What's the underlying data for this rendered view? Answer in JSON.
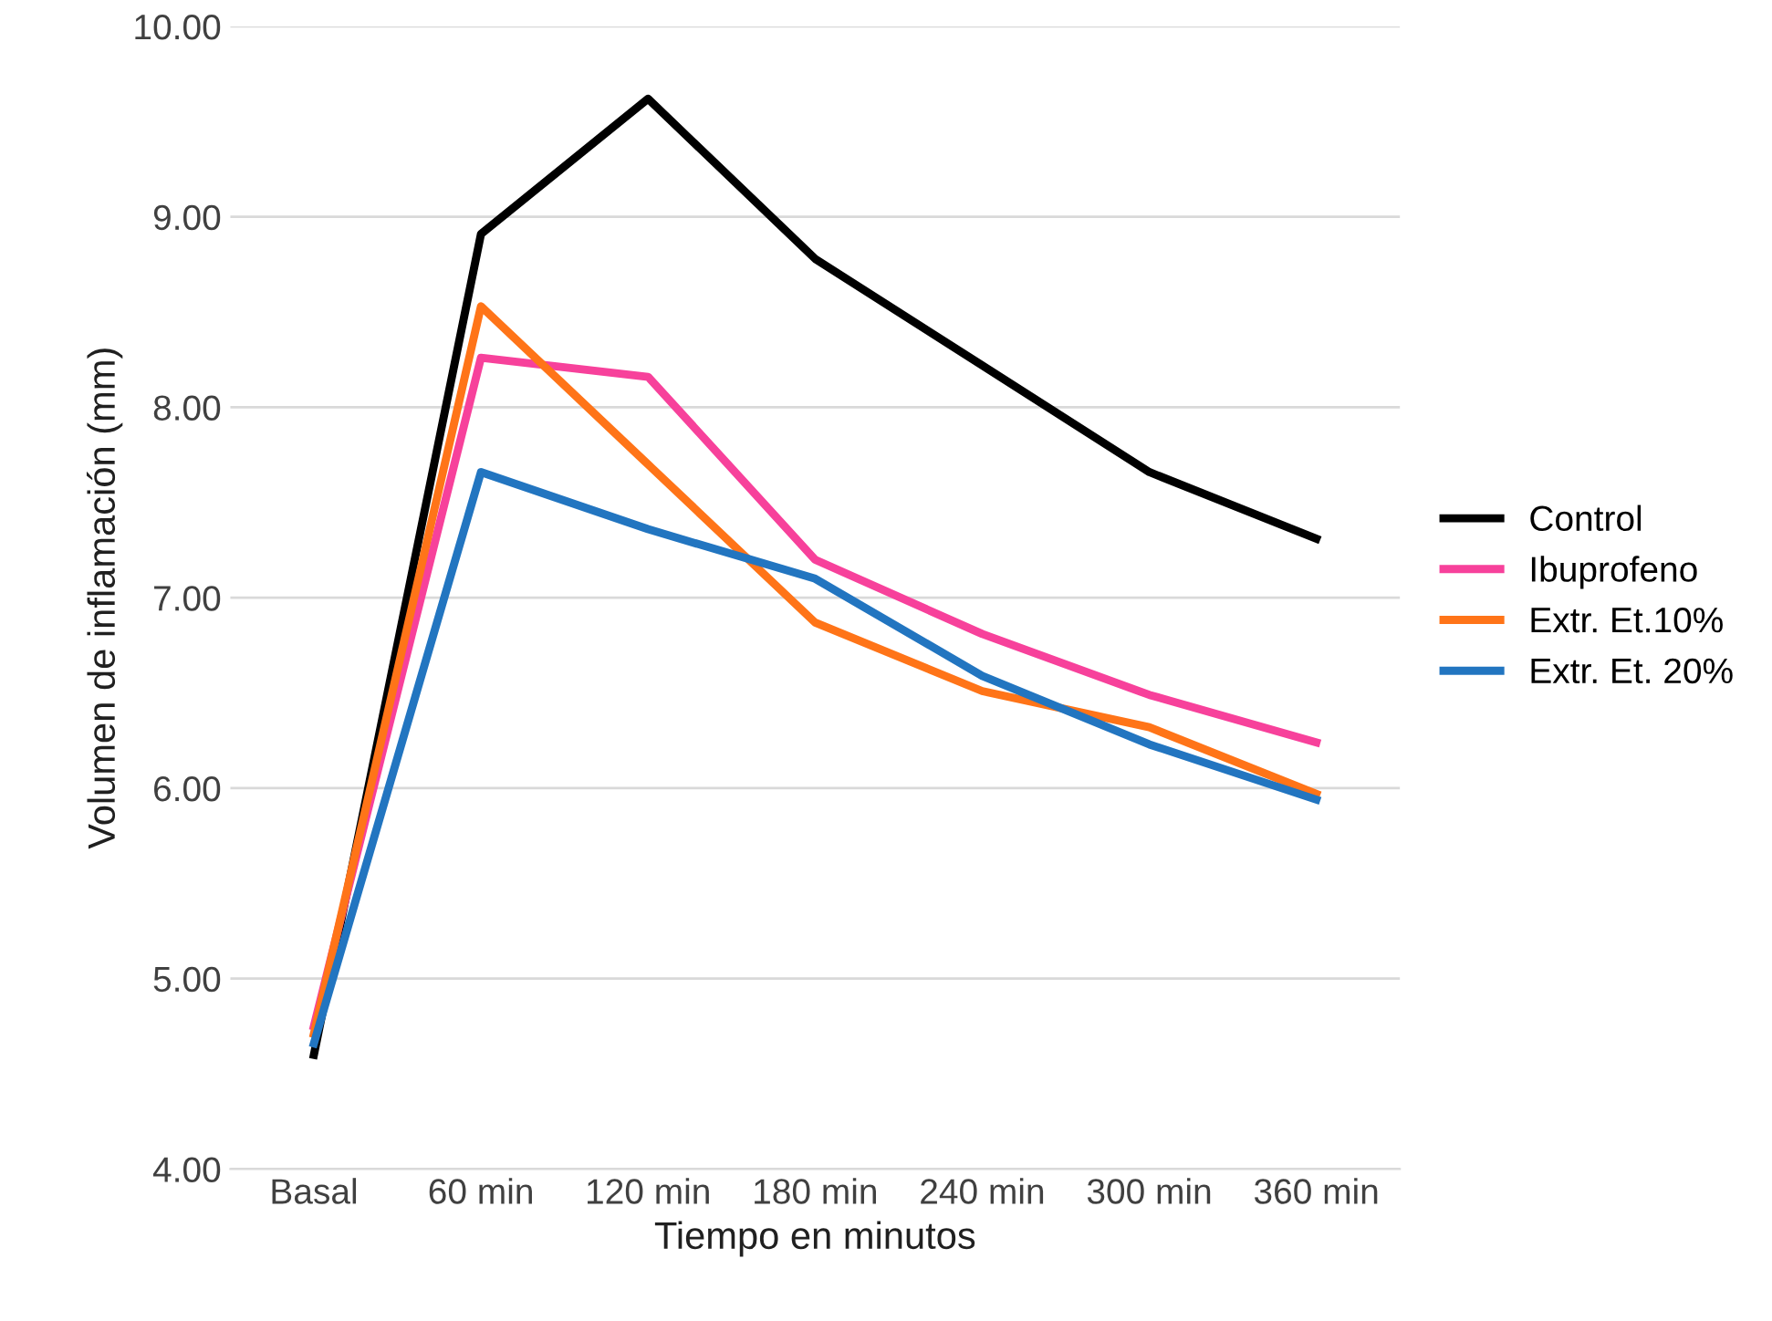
{
  "chart_data": {
    "type": "line",
    "xlabel": "Tiempo en minutos",
    "ylabel": "Volumen de inflamación (mm)",
    "categories": [
      "Basal",
      "60 min",
      "120 min",
      "180 min",
      "240 min",
      "300 min",
      "360 min"
    ],
    "series": [
      {
        "name": "Control",
        "color": "#000000",
        "values": [
          4.6,
          8.91,
          9.62,
          8.78,
          8.22,
          7.66,
          7.31
        ]
      },
      {
        "name": "Ibuprofeno",
        "color": "#f7419b",
        "values": [
          4.75,
          8.26,
          8.16,
          7.2,
          6.81,
          6.49,
          6.24
        ]
      },
      {
        "name": "Extr. Et.10%",
        "color": "#ff7418",
        "values": [
          4.71,
          8.53,
          7.7,
          6.87,
          6.51,
          6.32,
          5.97
        ]
      },
      {
        "name": "Extr. Et. 20%",
        "color": "#2275c0",
        "values": [
          4.66,
          7.66,
          7.36,
          7.1,
          6.59,
          6.23,
          5.94
        ]
      }
    ],
    "ylim": [
      4,
      10
    ],
    "yticks": [
      {
        "value": 4,
        "label": "4.00"
      },
      {
        "value": 5,
        "label": "5.00"
      },
      {
        "value": 6,
        "label": "6.00"
      },
      {
        "value": 7,
        "label": "7.00"
      },
      {
        "value": 8,
        "label": "8.00"
      },
      {
        "value": 9,
        "label": "9.00"
      },
      {
        "value": 10,
        "label": "10.00"
      }
    ],
    "grid": "y",
    "legend": "right",
    "marker": "none",
    "line_style": "solid"
  }
}
